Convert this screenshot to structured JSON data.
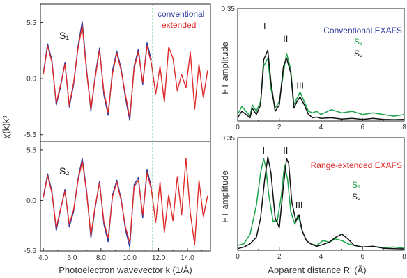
{
  "colors": {
    "conventional": "#2b3a9e",
    "extended": "#dd2a2a",
    "s1": "#19a34a",
    "s2": "#111111",
    "cutoff": "#19a34a"
  },
  "chart_data": [
    {
      "id": "kspace",
      "type": "line",
      "xlabel": "Photoelectron wavevector k (1/Å)",
      "ylabel": "χ(k)k³",
      "xlim": [
        3.8,
        15.6
      ],
      "xticks": [
        "4.0",
        "6.0",
        "8.0",
        "10.0",
        "12.0",
        "14.0"
      ],
      "cutoff_k": 11.6,
      "legend": [
        "conventional",
        "extended"
      ],
      "panels": [
        {
          "label": "S₁",
          "ylim": [
            -6.2,
            7.3
          ],
          "yticks": [
            "5.5",
            "0.0",
            "-5.5"
          ],
          "series": [
            {
              "name": "conventional",
              "x": [
                4.0,
                4.3,
                4.6,
                4.9,
                5.2,
                5.5,
                5.8,
                6.1,
                6.4,
                6.7,
                7.0,
                7.3,
                7.6,
                7.9,
                8.2,
                8.5,
                8.8,
                9.1,
                9.4,
                9.7,
                10.0,
                10.3,
                10.6,
                10.9,
                11.2,
                11.5
              ],
              "y": [
                0.5,
                3.4,
                1.8,
                -2.6,
                -0.8,
                1.6,
                -2.8,
                -0.6,
                3.1,
                5.6,
                0.9,
                -3.2,
                0.3,
                3.0,
                -1.6,
                -3.6,
                0.8,
                2.7,
                1.0,
                -1.9,
                -4.1,
                1.2,
                2.9,
                -0.6,
                3.5,
                1.8
              ]
            },
            {
              "name": "extended",
              "x": [
                4.0,
                4.3,
                4.6,
                4.9,
                5.2,
                5.5,
                5.8,
                6.1,
                6.4,
                6.7,
                7.0,
                7.3,
                7.6,
                7.9,
                8.2,
                8.5,
                8.8,
                9.1,
                9.4,
                9.7,
                10.0,
                10.3,
                10.6,
                10.9,
                11.2,
                11.5,
                11.8,
                12.1,
                12.4,
                12.7,
                13.0,
                13.3,
                13.6,
                13.9,
                14.2,
                14.5,
                14.8,
                15.1,
                15.4
              ],
              "y": [
                0.4,
                3.2,
                1.6,
                -2.4,
                -0.6,
                1.4,
                -2.6,
                -0.4,
                2.9,
                5.2,
                0.7,
                -3.0,
                0.1,
                2.8,
                -1.3,
                -3.3,
                0.5,
                2.5,
                0.8,
                -1.6,
                -3.8,
                1.0,
                2.6,
                -0.4,
                3.2,
                1.5,
                -1.5,
                1.2,
                -2.3,
                3.1,
                2.0,
                -1.2,
                0.4,
                -0.9,
                2.6,
                -3.0,
                1.4,
                -1.9,
                0.8
              ]
            }
          ]
        },
        {
          "label": "S₂",
          "ylim": [
            -5.5,
            6.4
          ],
          "yticks": [
            "5.5",
            "0.0",
            "-5.5"
          ],
          "series": [
            {
              "name": "conventional",
              "x": [
                4.0,
                4.3,
                4.6,
                4.9,
                5.2,
                5.5,
                5.8,
                6.1,
                6.4,
                6.7,
                7.0,
                7.3,
                7.6,
                7.9,
                8.2,
                8.5,
                8.8,
                9.1,
                9.4,
                9.7,
                10.0,
                10.3,
                10.6,
                10.9,
                11.2,
                11.5
              ],
              "y": [
                0.4,
                2.9,
                1.0,
                -3.3,
                -1.0,
                1.2,
                -2.9,
                -1.2,
                2.3,
                4.6,
                1.1,
                -4.1,
                -0.8,
                2.1,
                -2.6,
                -4.5,
                0.6,
                2.2,
                0.2,
                -3.2,
                -5.1,
                1.7,
                2.5,
                -1.9,
                3.4,
                1.4
              ]
            },
            {
              "name": "extended",
              "x": [
                4.0,
                4.3,
                4.6,
                4.9,
                5.2,
                5.5,
                5.8,
                6.1,
                6.4,
                6.7,
                7.0,
                7.3,
                7.6,
                7.9,
                8.2,
                8.5,
                8.8,
                9.1,
                9.4,
                9.7,
                10.0,
                10.3,
                10.6,
                10.9,
                11.2,
                11.5,
                11.8,
                12.1,
                12.4,
                12.7,
                13.0,
                13.3,
                13.6,
                13.9,
                14.2,
                14.5,
                14.8,
                15.1,
                15.4
              ],
              "y": [
                0.3,
                2.7,
                0.8,
                -3.0,
                -0.9,
                1.0,
                -2.6,
                -1.0,
                2.1,
                4.3,
                0.9,
                -3.8,
                -0.6,
                1.9,
                -2.3,
                -4.1,
                0.4,
                2.0,
                0.0,
                -2.9,
                -4.6,
                1.5,
                2.2,
                -1.6,
                3.0,
                1.2,
                -2.4,
                2.0,
                -3.5,
                0.6,
                -2.2,
                2.6,
                -1.6,
                4.6,
                -1.4,
                -4.8,
                2.2,
                -1.8,
                0.5
              ]
            }
          ]
        }
      ]
    },
    {
      "id": "ft",
      "type": "line",
      "xlabel": "Apparent distance R' (Å)",
      "ylabel": "FT amplitude",
      "xlim": [
        0,
        8
      ],
      "xticks": [
        "0",
        "2",
        "4",
        "6",
        "8"
      ],
      "panels": [
        {
          "title": "Conventional EXAFS",
          "ylim": [
            0,
            0.35
          ],
          "yticks": [
            "0.35"
          ],
          "legend": [
            "S₁",
            "S₂"
          ],
          "peak_labels": [
            {
              "text": "I",
              "x": 1.3,
              "y": 0.285
            },
            {
              "text": "II",
              "x": 2.3,
              "y": 0.245
            },
            {
              "text": "III",
              "x": 3.0,
              "y": 0.1
            }
          ],
          "series": [
            {
              "name": "S₁",
              "x": [
                0,
                0.2,
                0.4,
                0.6,
                0.7,
                0.9,
                1.1,
                1.25,
                1.45,
                1.6,
                1.8,
                2.0,
                2.2,
                2.35,
                2.55,
                2.7,
                2.85,
                3.0,
                3.2,
                3.4,
                3.6,
                3.8,
                4.0,
                4.5,
                5.0,
                5.5,
                6.0,
                6.5,
                7.0,
                7.5,
                8.0
              ],
              "y": [
                0.02,
                0.045,
                0.03,
                0.015,
                0.05,
                0.03,
                0.06,
                0.17,
                0.195,
                0.1,
                0.04,
                0.06,
                0.15,
                0.21,
                0.16,
                0.05,
                0.07,
                0.09,
                0.06,
                0.03,
                0.025,
                0.03,
                0.02,
                0.035,
                0.025,
                0.03,
                0.02,
                0.025,
                0.02,
                0.015,
                0.02
              ]
            },
            {
              "name": "S₂",
              "x": [
                0,
                0.2,
                0.4,
                0.6,
                0.7,
                0.9,
                1.1,
                1.25,
                1.45,
                1.6,
                1.8,
                2.0,
                2.2,
                2.35,
                2.55,
                2.7,
                2.85,
                3.0,
                3.2,
                3.4,
                3.6,
                3.8,
                4.0,
                4.5,
                5.0,
                5.5,
                6.0,
                6.5,
                7.0,
                7.5,
                8.0
              ],
              "y": [
                0.01,
                0.03,
                0.02,
                0.01,
                0.04,
                0.02,
                0.05,
                0.19,
                0.22,
                0.12,
                0.03,
                0.05,
                0.17,
                0.195,
                0.15,
                0.04,
                0.06,
                0.075,
                0.05,
                0.02,
                0.01,
                0.012,
                0.008,
                0.01,
                0.006,
                0.008,
                0.005,
                0.008,
                0.005,
                0.004,
                0.005
              ]
            }
          ]
        },
        {
          "title": "Range-extended EXAFS",
          "ylim": [
            0,
            0.35
          ],
          "yticks": [
            "0.35"
          ],
          "legend": [
            "S₁",
            "S₂"
          ],
          "peak_labels": [
            {
              "text": "I",
              "x": 1.25,
              "y": 0.3
            },
            {
              "text": "II",
              "x": 2.3,
              "y": 0.3
            },
            {
              "text": "III",
              "x": 2.95,
              "y": 0.13
            }
          ],
          "series": [
            {
              "name": "S₁",
              "x": [
                0,
                0.3,
                0.6,
                0.9,
                1.1,
                1.25,
                1.35,
                1.5,
                1.7,
                1.9,
                2.1,
                2.25,
                2.4,
                2.55,
                2.75,
                2.9,
                3.1,
                3.3,
                3.5,
                3.8,
                4.1,
                4.4,
                4.7,
                5.0,
                5.3,
                5.6,
                6.0,
                6.5,
                7.0,
                7.5,
                8.0
              ],
              "y": [
                0.015,
                0.02,
                0.05,
                0.14,
                0.24,
                0.285,
                0.26,
                0.17,
                0.09,
                0.09,
                0.17,
                0.265,
                0.22,
                0.12,
                0.08,
                0.11,
                0.06,
                0.03,
                0.02,
                0.015,
                0.03,
                0.025,
                0.035,
                0.03,
                0.02,
                0.015,
                0.01,
                0.012,
                0.008,
                0.01,
                0.006
              ]
            },
            {
              "name": "S₂",
              "x": [
                0,
                0.3,
                0.6,
                0.9,
                1.1,
                1.3,
                1.45,
                1.6,
                1.8,
                2.0,
                2.2,
                2.35,
                2.45,
                2.6,
                2.8,
                2.95,
                3.1,
                3.3,
                3.5,
                3.8,
                4.1,
                4.4,
                4.7,
                5.0,
                5.3,
                5.6,
                6.0,
                6.5,
                7.0,
                7.5,
                8.0
              ],
              "y": [
                0.005,
                0.01,
                0.02,
                0.04,
                0.1,
                0.22,
                0.29,
                0.24,
                0.1,
                0.07,
                0.2,
                0.285,
                0.27,
                0.15,
                0.09,
                0.11,
                0.06,
                0.03,
                0.02,
                0.012,
                0.018,
                0.025,
                0.04,
                0.05,
                0.035,
                0.015,
                0.01,
                0.012,
                0.006,
                0.005,
                0.004
              ]
            }
          ]
        }
      ]
    }
  ]
}
